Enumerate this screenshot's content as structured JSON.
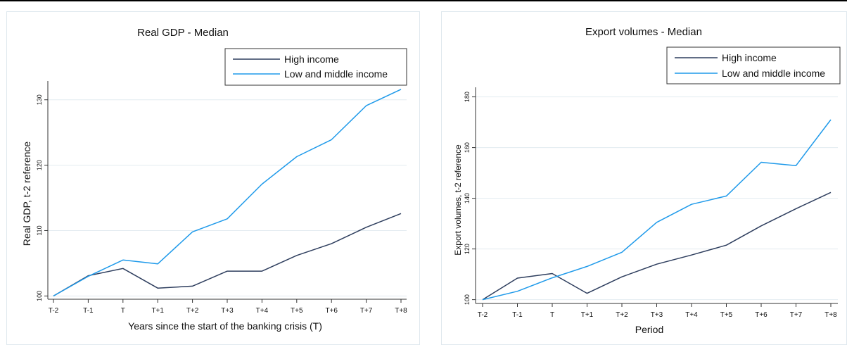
{
  "chart_data": [
    {
      "type": "line",
      "title": "Real GDP - Median",
      "xlabel": "Years since the start of the banking crisis (T)",
      "ylabel": "Real GDP, t-2 reference",
      "categories": [
        "T-2",
        "T-1",
        "T",
        "T+1",
        "T+2",
        "T+3",
        "T+4",
        "T+5",
        "T+6",
        "T+7",
        "T+8"
      ],
      "yticks": [
        100,
        110,
        120,
        130
      ],
      "ylim": [
        99.5,
        131.8
      ],
      "grid": true,
      "legend": "top-right",
      "series": [
        {
          "name": "High income",
          "color": "#2e3e5e",
          "values": [
            100,
            103.1,
            104.2,
            101.2,
            101.5,
            103.8,
            103.8,
            106.2,
            108.0,
            110.5,
            112.6
          ]
        },
        {
          "name": "Low and middle income",
          "color": "#1f9aea",
          "values": [
            100,
            103.0,
            105.5,
            104.9,
            109.8,
            111.8,
            117.1,
            121.3,
            123.9,
            129.1,
            131.6
          ]
        }
      ]
    },
    {
      "type": "line",
      "title": "Export volumes - Median",
      "xlabel": "Period",
      "ylabel": "Export volumes, t-2 reference",
      "categories": [
        "T-2",
        "T-1",
        "T",
        "T+1",
        "T+2",
        "T+3",
        "T+4",
        "T+5",
        "T+6",
        "T+7",
        "T+8"
      ],
      "yticks": [
        100,
        120,
        140,
        160,
        180
      ],
      "ylim": [
        98.5,
        181
      ],
      "grid": true,
      "legend": "top-right",
      "series": [
        {
          "name": "High income",
          "color": "#2e3e5e",
          "values": [
            100,
            108.5,
            110.3,
            102.5,
            109.0,
            114.0,
            117.6,
            121.5,
            129.1,
            135.9,
            142.3
          ]
        },
        {
          "name": "Low and middle income",
          "color": "#1f9aea",
          "values": [
            100,
            103.3,
            108.6,
            113.1,
            118.7,
            130.5,
            137.6,
            140.9,
            154.2,
            152.9,
            171.0
          ]
        }
      ]
    }
  ]
}
